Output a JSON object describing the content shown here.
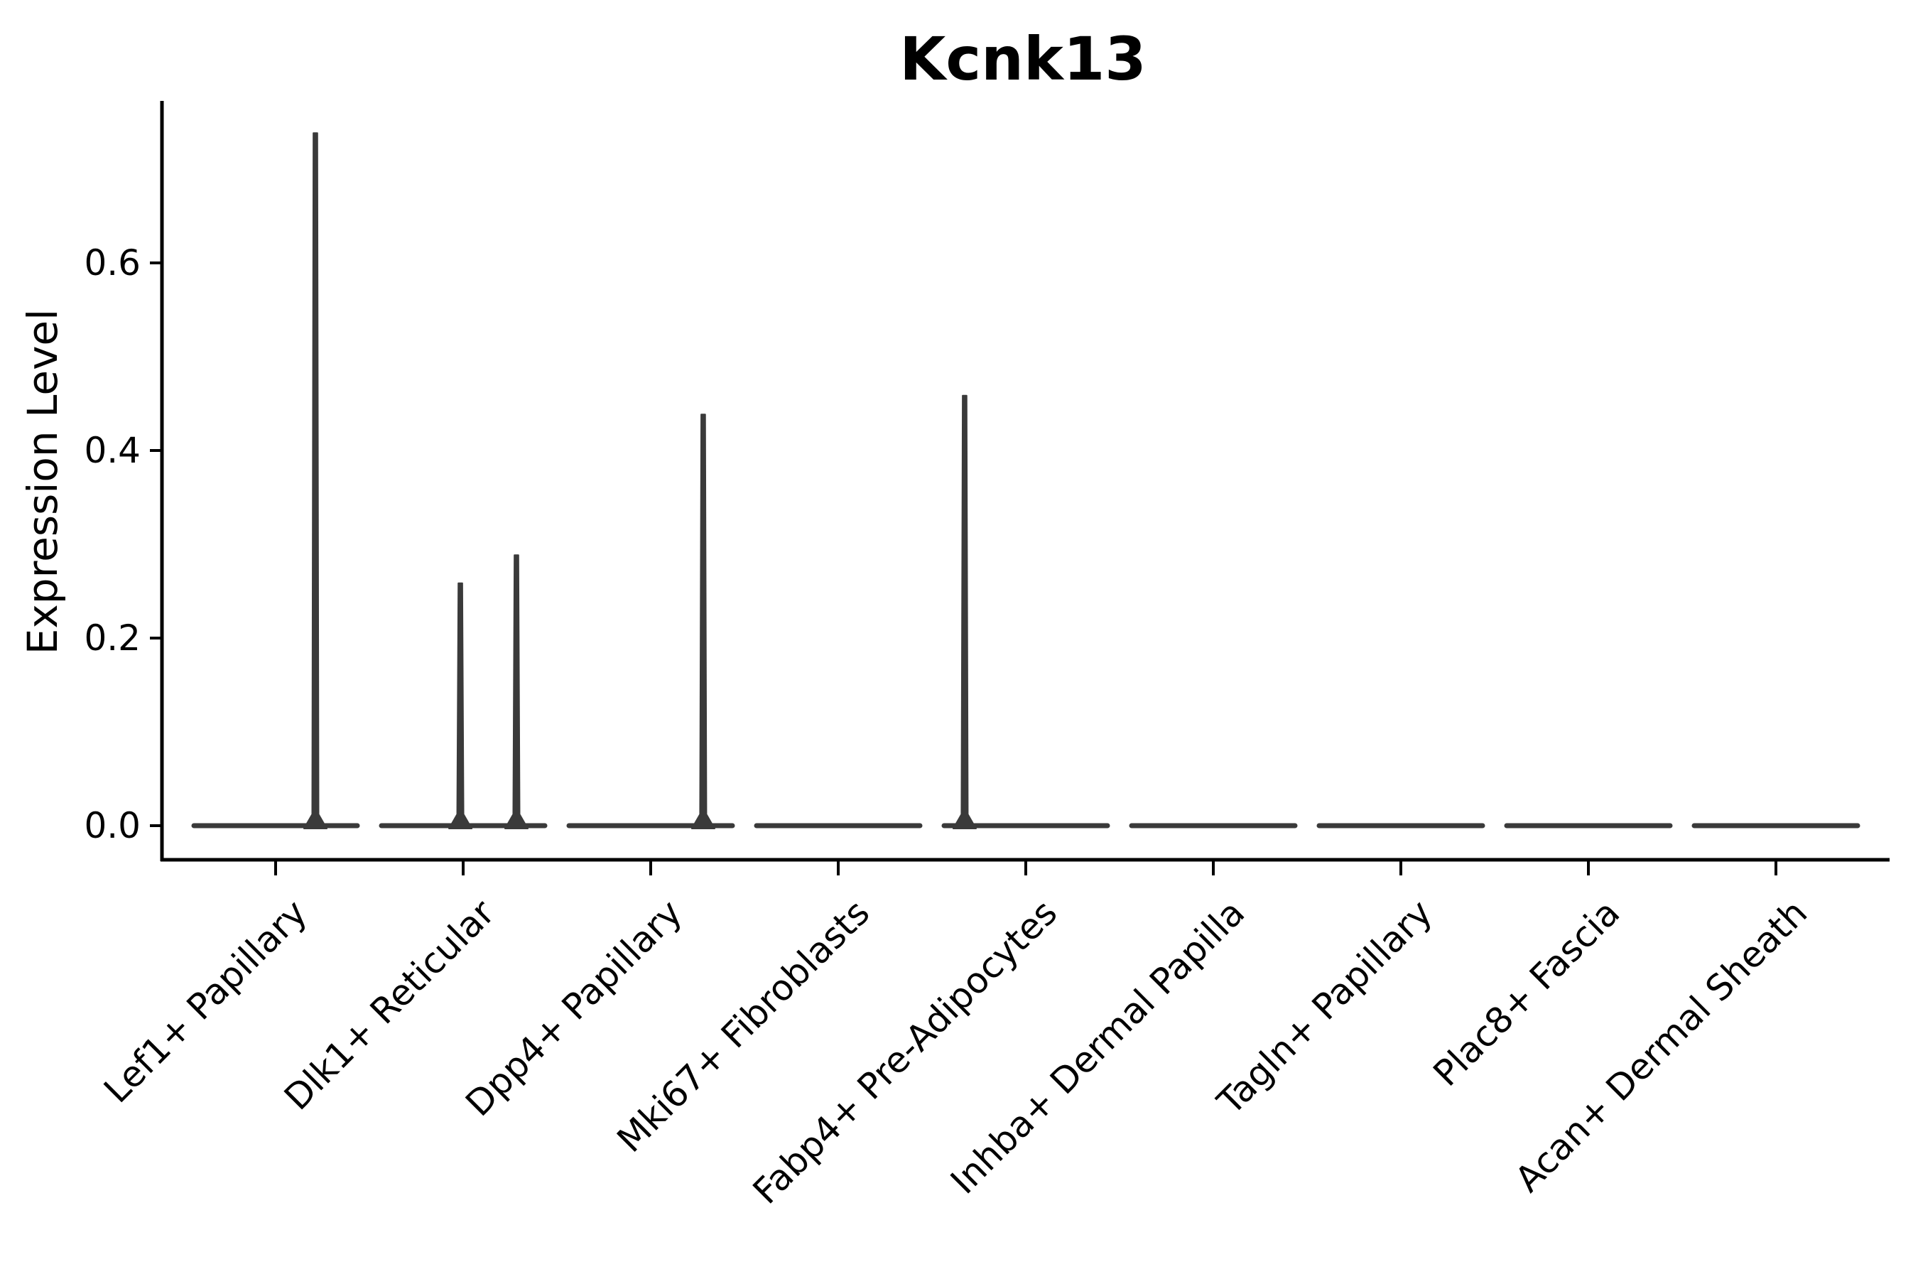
{
  "title": "Kcnk13",
  "y_axis": {
    "label": "Expression Level",
    "tick_labels": [
      "0.0",
      "0.2",
      "0.4",
      "0.6"
    ]
  },
  "x_axis": {
    "categories": [
      "Lef1+ Papillary",
      "Dlk1+ Reticular",
      "Dpp4+ Papillary",
      "Mki67+ Fibroblasts",
      "Fabp4+ Pre-Adipocytes",
      "Inhba+ Dermal Papilla",
      "Tagln+ Papillary",
      "Plac8+ Fascia",
      "Acan+ Dermal Sheath"
    ]
  },
  "colors": {
    "violin": "#3a3a3a",
    "axis": "#000000",
    "text": "#000000",
    "background": "#ffffff"
  },
  "chart_data": {
    "type": "violin",
    "title": "Kcnk13",
    "ylabel": "Expression Level",
    "ylim": [
      0.0,
      0.77
    ],
    "yticks": [
      0.0,
      0.2,
      0.4,
      0.6
    ],
    "grid": false,
    "legend": false,
    "categories": [
      "Lef1+ Papillary",
      "Dlk1+ Reticular",
      "Dpp4+ Papillary",
      "Mki67+ Fibroblasts",
      "Fabp4+ Pre-Adipocytes",
      "Inhba+ Dermal Papilla",
      "Tagln+ Papillary",
      "Plac8+ Fascia",
      "Acan+ Dermal Sheath"
    ],
    "violins": [
      {
        "label": "Lef1+ Papillary",
        "body_value": 0.0,
        "max_expression": 0.74,
        "spikes": [
          {
            "value": 0.74,
            "x_offset_frac": 0.212
          }
        ]
      },
      {
        "label": "Dlk1+ Reticular",
        "body_value": 0.0,
        "max_expression": 0.29,
        "spikes": [
          {
            "value": 0.26,
            "x_offset_frac": -0.015
          },
          {
            "value": 0.29,
            "x_offset_frac": 0.284
          }
        ]
      },
      {
        "label": "Dpp4+ Papillary",
        "body_value": 0.0,
        "max_expression": 0.44,
        "spikes": [
          {
            "value": 0.44,
            "x_offset_frac": 0.28
          }
        ]
      },
      {
        "label": "Mki67+ Fibroblasts",
        "body_value": 0.0,
        "max_expression": 0.0,
        "spikes": []
      },
      {
        "label": "Fabp4+ Pre-Adipocytes",
        "body_value": 0.0,
        "max_expression": 0.46,
        "spikes": [
          {
            "value": 0.46,
            "x_offset_frac": -0.326
          }
        ]
      },
      {
        "label": "Inhba+ Dermal Papilla",
        "body_value": 0.0,
        "max_expression": 0.0,
        "spikes": []
      },
      {
        "label": "Tagln+ Papillary",
        "body_value": 0.0,
        "max_expression": 0.0,
        "spikes": []
      },
      {
        "label": "Plac8+ Fascia",
        "body_value": 0.0,
        "max_expression": 0.0,
        "spikes": []
      },
      {
        "label": "Acan+ Dermal Sheath",
        "body_value": 0.0,
        "max_expression": 0.0,
        "spikes": []
      }
    ]
  }
}
